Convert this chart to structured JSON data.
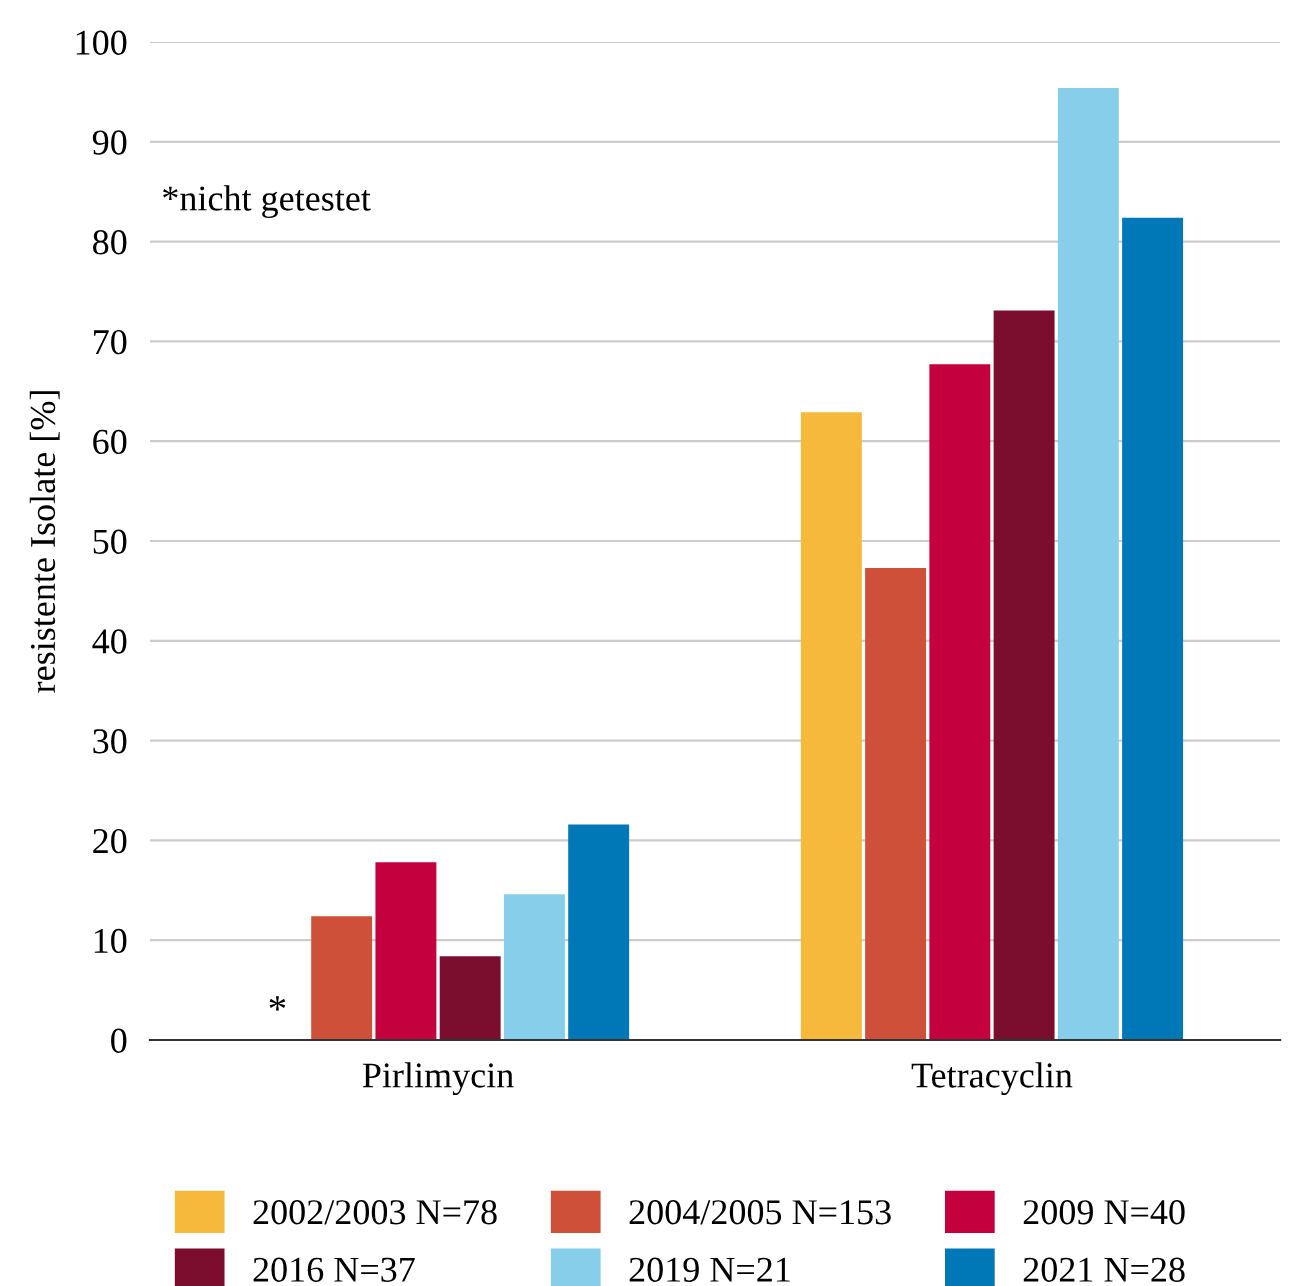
{
  "chart_data": {
    "type": "bar",
    "ylabel": "resistente Isolate [%]",
    "categories": [
      "Pirlimycin",
      "Tetracyclin"
    ],
    "series": [
      {
        "name": "2002/2003 N=78",
        "color": "#f6b93b",
        "values": [
          null,
          62.9
        ]
      },
      {
        "name": "2004/2005 N=153",
        "color": "#cf5038",
        "values": [
          12.4,
          47.3
        ]
      },
      {
        "name": "2009 N=40",
        "color": "#c4003f",
        "values": [
          17.8,
          67.7
        ]
      },
      {
        "name": "2016 N=37",
        "color": "#7b0d2e",
        "values": [
          8.4,
          73.1
        ]
      },
      {
        "name": "2019 N=21",
        "color": "#87ceeb",
        "values": [
          14.6,
          95.4
        ]
      },
      {
        "name": "2021 N=28",
        "color": "#0077b6",
        "values": [
          21.6,
          82.4
        ]
      }
    ],
    "ylim": [
      0,
      100
    ],
    "yticks": [
      0,
      10,
      20,
      30,
      40,
      50,
      60,
      70,
      80,
      90,
      100
    ],
    "grid": "y",
    "legend": "bottom",
    "annotations": [
      "*nicht getestet",
      "*"
    ]
  }
}
